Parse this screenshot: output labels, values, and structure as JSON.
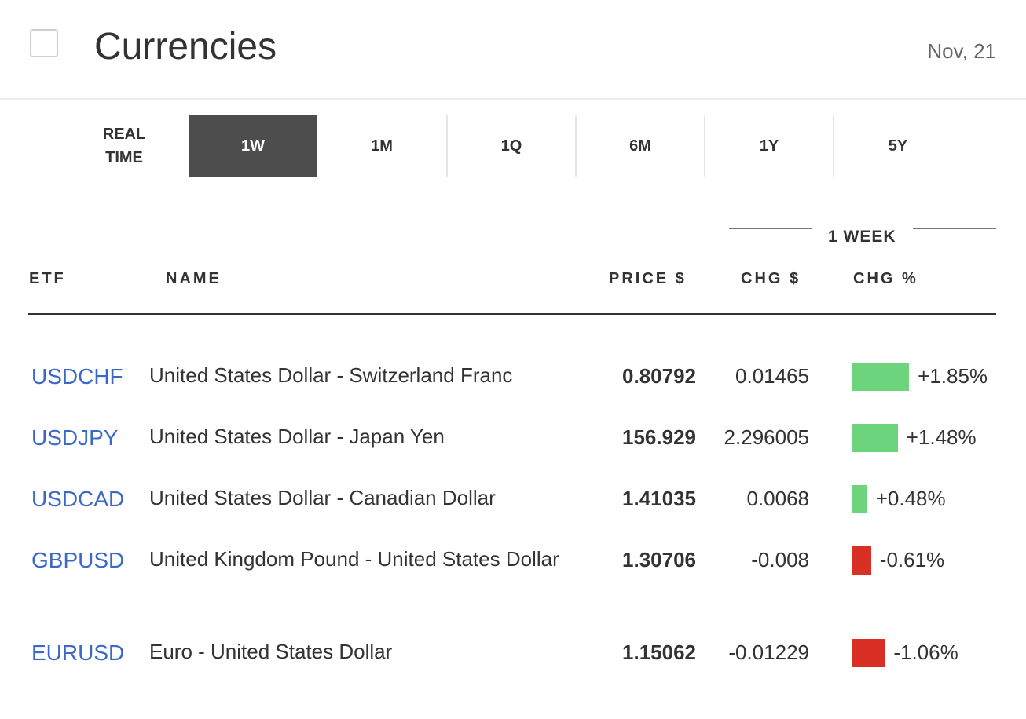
{
  "header": {
    "title": "Currencies",
    "date": "Nov, 21"
  },
  "tabs": [
    {
      "label": "REAL TIME"
    },
    {
      "label": "1W",
      "active": true
    },
    {
      "label": "1M"
    },
    {
      "label": "1Q"
    },
    {
      "label": "6M"
    },
    {
      "label": "1Y"
    },
    {
      "label": "5Y"
    }
  ],
  "table": {
    "group_label": "1 WEEK",
    "columns": {
      "etf": "ETF",
      "name": "NAME",
      "price": "PRICE $",
      "chg": "CHG $",
      "chg_pct": "CHG %"
    },
    "rows": [
      {
        "symbol": "USDCHF",
        "name": "United States Dollar - Switzerland Franc",
        "price": "0.80792",
        "chg": "0.01465",
        "pct": "+1.85%",
        "pct_value": 1.85
      },
      {
        "symbol": "USDJPY",
        "name": "United States Dollar - Japan Yen",
        "price": "156.929",
        "chg": "2.296005",
        "pct": "+1.48%",
        "pct_value": 1.48
      },
      {
        "symbol": "USDCAD",
        "name": "United States Dollar - Canadian Dollar",
        "price": "1.41035",
        "chg": "0.0068",
        "pct": "+0.48%",
        "pct_value": 0.48
      },
      {
        "symbol": "GBPUSD",
        "name": "United Kingdom Pound - United States Dollar",
        "price": "1.30706",
        "chg": "-0.008",
        "pct": "-0.61%",
        "pct_value": -0.61
      },
      {
        "symbol": "EURUSD",
        "name": "Euro - United States Dollar",
        "price": "1.15062",
        "chg": "-0.01229",
        "pct": "-1.06%",
        "pct_value": -1.06
      }
    ]
  },
  "colors": {
    "positive": "#6dd47e",
    "negative": "#d93025",
    "link": "#3b67c9",
    "active_tab": "#4d4d4d"
  }
}
